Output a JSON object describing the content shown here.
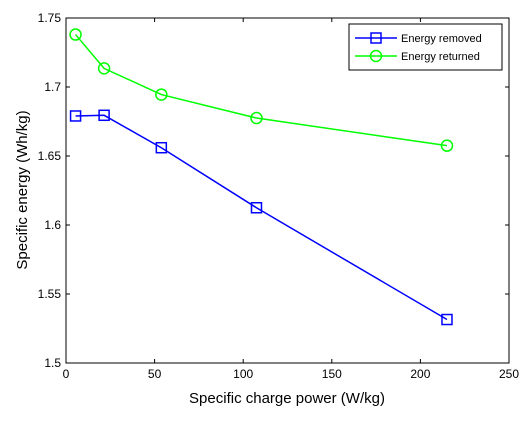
{
  "chart_data": {
    "type": "line",
    "title": "",
    "xlabel": "Specific charge power (W/kg)",
    "ylabel": "Specific energy (Wh/kg)",
    "xlim": [
      0,
      250
    ],
    "ylim": [
      1.5,
      1.75
    ],
    "xticks": [
      0,
      50,
      100,
      150,
      200,
      250
    ],
    "yticks": [
      1.5,
      1.55,
      1.6,
      1.65,
      1.7,
      1.75
    ],
    "xtick_labels": [
      "0",
      "50",
      "100",
      "150",
      "200",
      "250"
    ],
    "ytick_labels": [
      "1.5",
      "1.55",
      "1.6",
      "1.65",
      "1.7",
      "1.75"
    ],
    "grid": false,
    "legend_position": "top-right",
    "series": [
      {
        "name": "Energy removed",
        "color": "#0000ff",
        "marker": "square",
        "x": [
          5.4,
          21.5,
          53.8,
          107.5,
          215
        ],
        "y": [
          1.679,
          1.6795,
          1.656,
          1.6125,
          1.5315
        ]
      },
      {
        "name": "Energy returned",
        "color": "#00ff00",
        "marker": "circle",
        "x": [
          5.4,
          21.5,
          53.8,
          107.5,
          215
        ],
        "y": [
          1.738,
          1.7135,
          1.6945,
          1.6775,
          1.6575
        ]
      }
    ]
  }
}
